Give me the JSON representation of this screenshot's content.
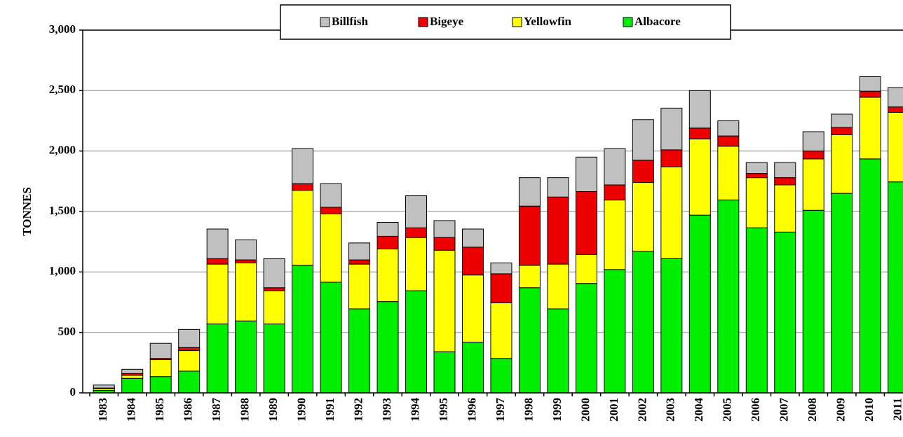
{
  "chart_data": {
    "type": "stacked_bar",
    "y_label": "TONNES",
    "categories": [
      "1983",
      "1984",
      "1985",
      "1986",
      "1987",
      "1988",
      "1989",
      "1990",
      "1991",
      "1992",
      "1993",
      "1994",
      "1995",
      "1996",
      "1997",
      "1998",
      "1999",
      "2000",
      "2001",
      "2002",
      "2003",
      "2004",
      "2005",
      "2006",
      "2007",
      "2008",
      "2009",
      "2010",
      "2011"
    ],
    "series": [
      {
        "name": "Albacore",
        "color": "#00ee00",
        "values": [
          20,
          120,
          135,
          180,
          570,
          595,
          570,
          1055,
          915,
          695,
          755,
          845,
          340,
          420,
          285,
          870,
          695,
          905,
          1020,
          1170,
          1110,
          1470,
          1595,
          1365,
          1330,
          1510,
          1650,
          1935,
          1745
        ]
      },
      {
        "name": "Yellowfin",
        "color": "#ffff00",
        "values": [
          15,
          25,
          140,
          170,
          495,
          480,
          275,
          620,
          565,
          370,
          435,
          440,
          840,
          555,
          460,
          185,
          370,
          240,
          575,
          570,
          760,
          630,
          445,
          415,
          390,
          425,
          485,
          510,
          575
        ]
      },
      {
        "name": "Bigeye",
        "color": "#ee0000",
        "values": [
          5,
          15,
          10,
          25,
          45,
          25,
          25,
          55,
          55,
          35,
          105,
          80,
          105,
          230,
          240,
          490,
          555,
          520,
          125,
          185,
          140,
          90,
          85,
          35,
          60,
          65,
          60,
          50,
          45
        ]
      },
      {
        "name": "Billfish",
        "color": "#c0c0c0",
        "values": [
          25,
          35,
          125,
          150,
          245,
          165,
          240,
          290,
          195,
          140,
          115,
          265,
          140,
          150,
          90,
          235,
          160,
          285,
          300,
          335,
          345,
          310,
          125,
          90,
          125,
          160,
          110,
          120,
          160
        ]
      }
    ],
    "ylim": [
      0,
      3000
    ],
    "yticks": [
      0,
      500,
      {
        "value": 1000,
        "label": "1,000"
      },
      {
        "value": 1500,
        "label": "1,500"
      },
      {
        "value": 2000,
        "label": "2,000"
      },
      {
        "value": 2500,
        "label": "2,500"
      },
      {
        "value": 3000,
        "label": "3,000"
      }
    ],
    "grid": true,
    "legend": "top"
  }
}
